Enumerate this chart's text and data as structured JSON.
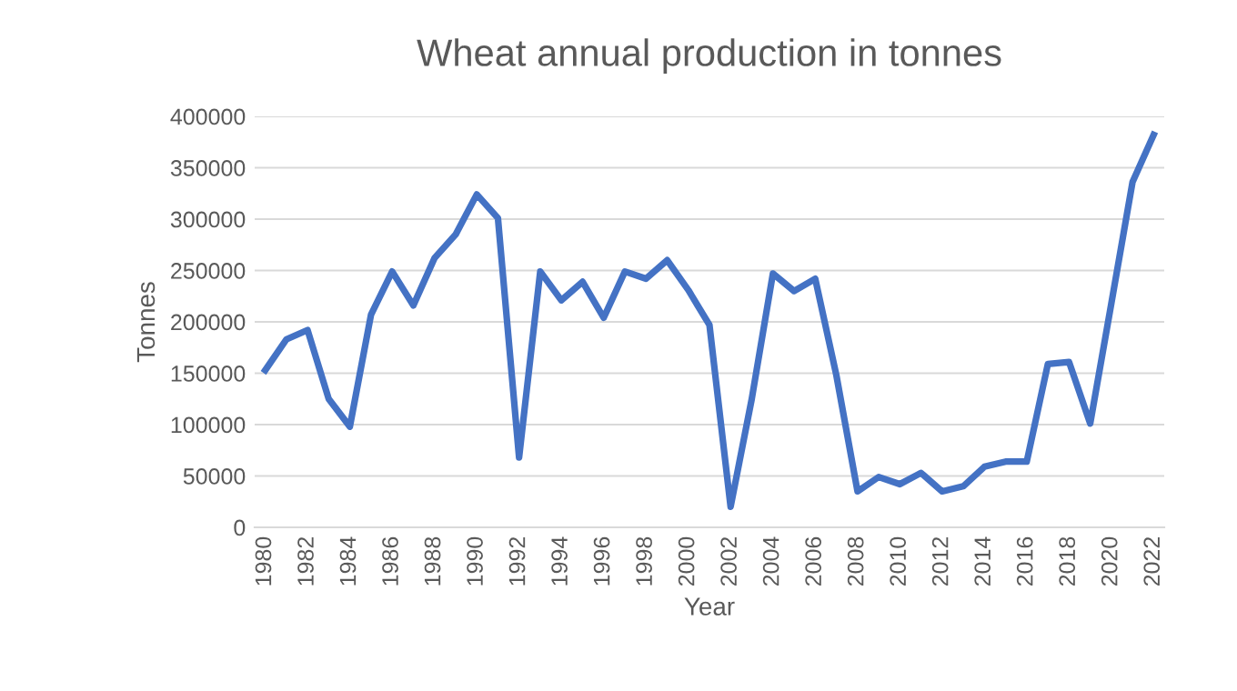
{
  "chart_data": {
    "type": "line",
    "title": "Wheat annual production in tonnes",
    "xlabel": "Year",
    "ylabel": "Tonnes",
    "categories": [
      "1980",
      null,
      "1982",
      null,
      "1984",
      null,
      "1986",
      null,
      "1988",
      null,
      "1990",
      null,
      "1992",
      null,
      "1994",
      null,
      "1996",
      null,
      "1998",
      null,
      "2000",
      null,
      "2002",
      null,
      "2004",
      null,
      "2006",
      null,
      "2008",
      null,
      "2010",
      null,
      "2012",
      null,
      "2014",
      null,
      "2016",
      null,
      "2018",
      null,
      "2020",
      null,
      "2022"
    ],
    "series": [
      {
        "color": "#4472c4",
        "values": [
          153000,
          183000,
          192000,
          125000,
          98000,
          207000,
          249000,
          216000,
          262000,
          285000,
          324000,
          301000,
          68000,
          249000,
          221000,
          239000,
          204000,
          249000,
          242000,
          260000,
          231000,
          197000,
          20000,
          125000,
          247000,
          230000,
          242000,
          148000,
          35000,
          49000,
          42000,
          53000,
          35000,
          40000,
          59000,
          64000,
          64000,
          159000,
          161000,
          101000,
          218000,
          336000,
          382000
        ]
      }
    ],
    "ylim": [
      0,
      400000
    ],
    "yticks": [
      0,
      50000,
      100000,
      150000,
      200000,
      250000,
      300000,
      350000,
      400000
    ],
    "grid": "y"
  }
}
